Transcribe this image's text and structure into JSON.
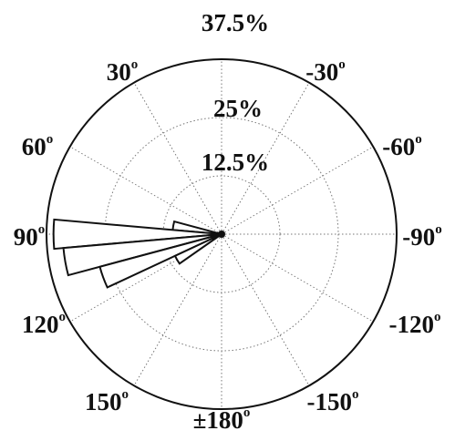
{
  "chart_data": {
    "type": "polar-histogram",
    "title": "",
    "radial_ticks": [
      {
        "value": 12.5,
        "label": "12.5%"
      },
      {
        "value": 25,
        "label": "25%"
      },
      {
        "value": 37.5,
        "label": "37.5%"
      }
    ],
    "r_max": 37.5,
    "angular_ticks": [
      {
        "angle": 0,
        "label": "0",
        "show": false
      },
      {
        "angle": 30,
        "label": "30",
        "show": true
      },
      {
        "angle": 60,
        "label": "60",
        "show": true
      },
      {
        "angle": 90,
        "label": "90",
        "show": true
      },
      {
        "angle": 120,
        "label": "120",
        "show": true
      },
      {
        "angle": 150,
        "label": "150",
        "show": true
      },
      {
        "angle": 180,
        "label": "±180",
        "show": true
      },
      {
        "angle": -150,
        "label": "-150",
        "show": true
      },
      {
        "angle": -120,
        "label": "-120",
        "show": true
      },
      {
        "angle": -90,
        "label": "-90",
        "show": true
      },
      {
        "angle": -60,
        "label": "-60",
        "show": true
      },
      {
        "angle": -30,
        "label": "-30",
        "show": true
      }
    ],
    "degree_symbol": "o",
    "angle_direction": "counterclockwise-from-top",
    "grid": true,
    "bins": [
      {
        "start": 75,
        "end": 85,
        "value": 10.5
      },
      {
        "start": 85,
        "end": 95,
        "value": 36
      },
      {
        "start": 95,
        "end": 105,
        "value": 34
      },
      {
        "start": 105,
        "end": 115,
        "value": 27
      },
      {
        "start": 115,
        "end": 125,
        "value": 11
      }
    ]
  }
}
